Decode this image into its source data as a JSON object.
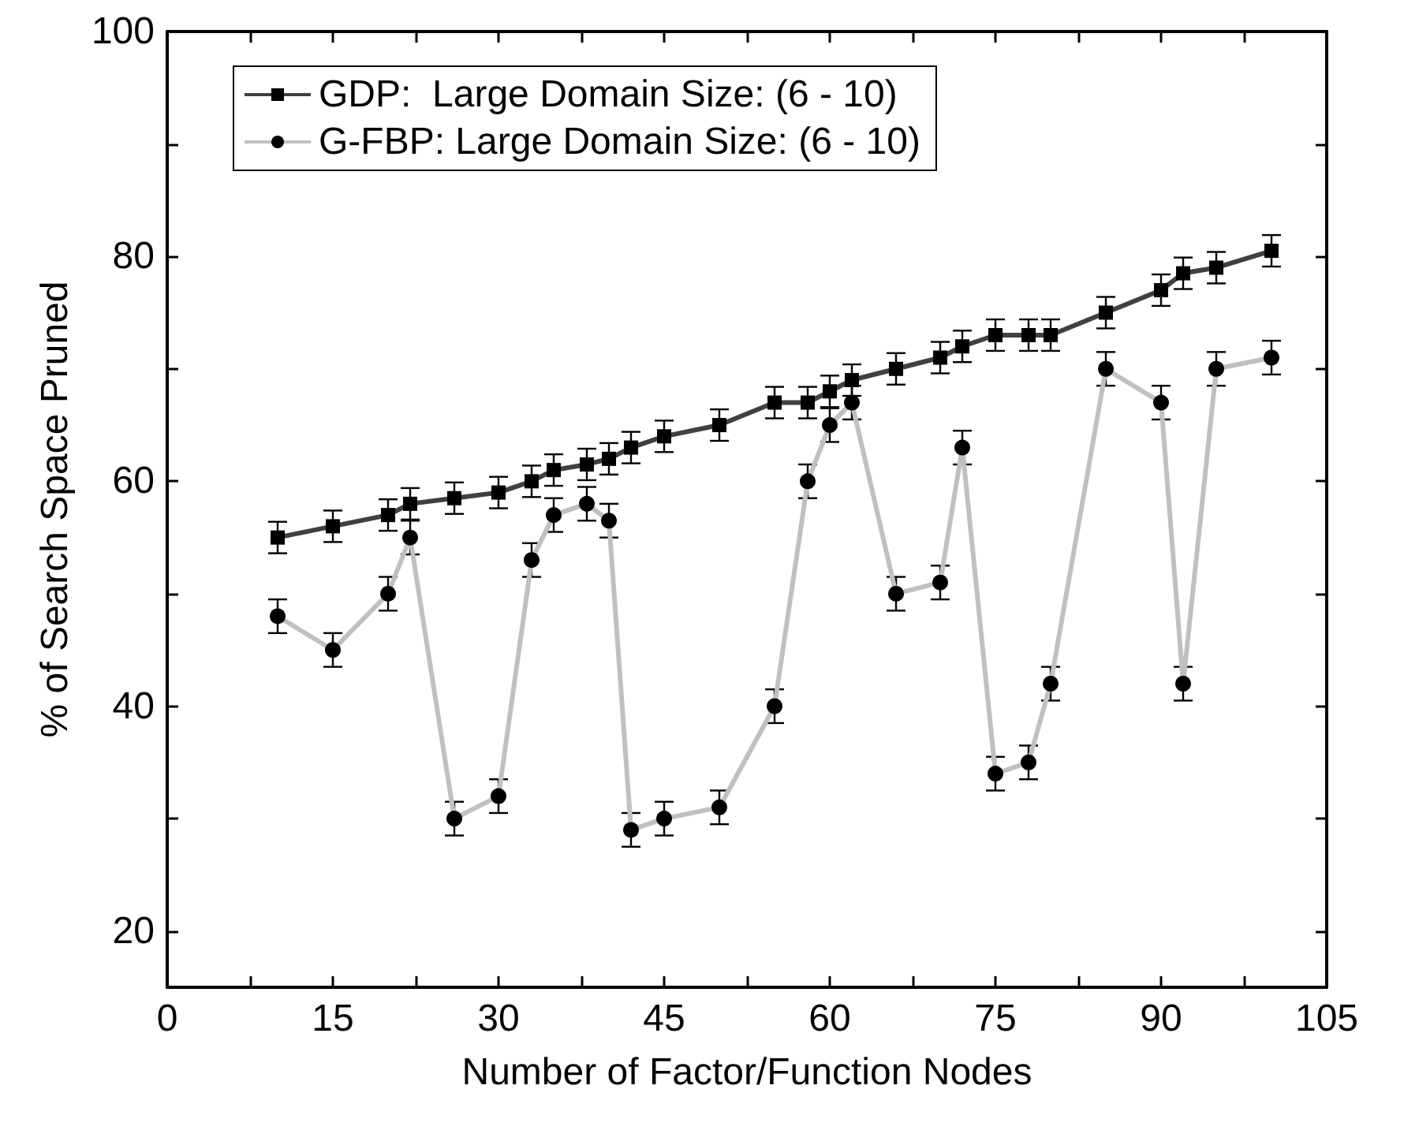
{
  "chart_data": {
    "type": "line",
    "xlabel": "Number of Factor/Function Nodes",
    "ylabel": "% of Search Space Pruned",
    "x": [
      10,
      15,
      20,
      22,
      26,
      30,
      33,
      35,
      38,
      40,
      42,
      45,
      50,
      55,
      58,
      60,
      62,
      66,
      70,
      72,
      75,
      78,
      80,
      85,
      90,
      92,
      95,
      100
    ],
    "series": [
      {
        "name": "GDP:  Large Domain Size: (6 - 10)",
        "color": "#404040",
        "marker": "square",
        "values": [
          55,
          56,
          57,
          58,
          58.5,
          59,
          60,
          61,
          61.5,
          62,
          63,
          64,
          65,
          67,
          67,
          68,
          69,
          70,
          71,
          72,
          73,
          73,
          73,
          75,
          77,
          78.5,
          79,
          80.5
        ],
        "errors": [
          1.4,
          1.4,
          1.4,
          1.4,
          1.4,
          1.4,
          1.4,
          1.4,
          1.4,
          1.4,
          1.4,
          1.4,
          1.4,
          1.4,
          1.4,
          1.4,
          1.4,
          1.4,
          1.4,
          1.4,
          1.4,
          1.4,
          1.4,
          1.4,
          1.4,
          1.4,
          1.4,
          1.4
        ]
      },
      {
        "name": "G-FBP: Large Domain Size: (6 - 10)",
        "color": "#c0c0c0",
        "marker": "circle",
        "values": [
          48,
          45,
          50,
          55,
          30,
          32,
          53,
          57,
          58,
          56.5,
          29,
          30,
          31,
          40,
          60,
          65,
          67,
          50,
          51,
          63,
          34,
          35,
          42,
          70,
          67,
          42,
          70,
          71
        ],
        "errors": [
          1.5,
          1.5,
          1.5,
          1.5,
          1.5,
          1.5,
          1.5,
          1.5,
          1.5,
          1.5,
          1.5,
          1.5,
          1.5,
          1.5,
          1.5,
          1.5,
          1.5,
          1.5,
          1.5,
          1.5,
          1.5,
          1.5,
          1.5,
          1.5,
          1.5,
          1.5,
          1.5,
          1.5
        ]
      }
    ],
    "xlim": [
      0,
      105
    ],
    "xticks": [
      0,
      {
        "value": 7.5,
        "label": null
      },
      15,
      {
        "value": 22.5,
        "label": null
      },
      30,
      {
        "value": 37.5,
        "label": null
      },
      45,
      {
        "value": 52.5,
        "label": null
      },
      60,
      {
        "value": 67.5,
        "label": null
      },
      75,
      {
        "value": 82.5,
        "label": null
      },
      90,
      {
        "value": 97.5,
        "label": null
      },
      105
    ],
    "ylim": [
      15,
      100
    ],
    "yticks": [
      20,
      {
        "value": 30,
        "label": null
      },
      40,
      {
        "value": 50,
        "label": null
      },
      60,
      {
        "value": 70,
        "label": null
      },
      80,
      {
        "value": 90,
        "label": null
      },
      100
    ],
    "grid": false,
    "legend": "top left",
    "line_style": "solid"
  }
}
